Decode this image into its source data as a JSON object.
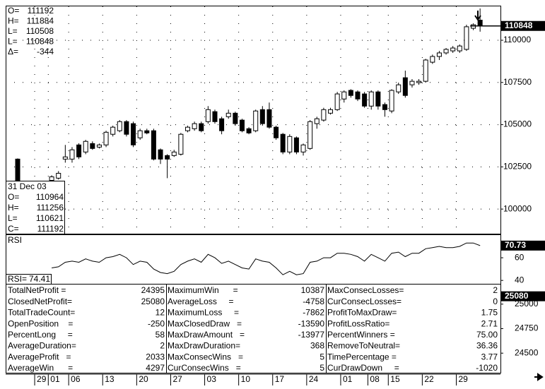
{
  "chart_data": [
    {
      "type": "candlestick",
      "categories": [
        null,
        null,
        null,
        "29",
        null,
        "01",
        null,
        null,
        "06",
        null,
        null,
        null,
        null,
        "13",
        null,
        null,
        null,
        null,
        "20",
        null,
        null,
        null,
        null,
        "27",
        null,
        null,
        null,
        null,
        "03",
        null,
        null,
        null,
        null,
        "10",
        null,
        null,
        null,
        null,
        "17",
        null,
        null,
        null,
        null,
        "24",
        null,
        null,
        null,
        null,
        "01",
        null,
        null,
        null,
        "08",
        null,
        null,
        "15",
        null,
        null,
        null,
        null,
        "22",
        null,
        null,
        null,
        null,
        "29",
        null,
        null,
        null
      ],
      "open": [
        102960,
        null,
        null,
        null,
        null,
        101700,
        101830,
        102960,
        102960,
        103800,
        103380,
        103880,
        103670,
        103800,
        104430,
        104640,
        105180,
        105060,
        104220,
        104640,
        104640,
        103510,
        103170,
        103170,
        103250,
        104640,
        104760,
        105060,
        105180,
        105770,
        105350,
        105470,
        105680,
        105270,
        104760,
        104640,
        105890,
        105890,
        104850,
        104430,
        103380,
        104220,
        103380,
        103590,
        105060,
        105270,
        105680,
        105890,
        106520,
        107030,
        106940,
        106820,
        106100,
        106940,
        106190,
        105810,
        106940,
        107780,
        107360,
        107490,
        107570,
        108700,
        109040,
        109250,
        109370,
        109370,
        109460,
        110710,
        111192
      ],
      "high": [
        103000,
        null,
        null,
        null,
        null,
        102000,
        102250,
        103800,
        103670,
        103900,
        104100,
        104010,
        103880,
        104640,
        104940,
        105270,
        105270,
        105180,
        104760,
        104760,
        104760,
        103590,
        103250,
        103510,
        104510,
        104940,
        105180,
        105180,
        106100,
        105890,
        105470,
        105890,
        105770,
        105350,
        104850,
        105890,
        106100,
        106310,
        104940,
        104510,
        104430,
        104300,
        103880,
        105270,
        105470,
        106000,
        106000,
        106940,
        107030,
        107100,
        107030,
        106940,
        107030,
        107030,
        106310,
        107100,
        107490,
        108200,
        107700,
        107700,
        108900,
        109150,
        109370,
        109540,
        109660,
        109750,
        110920,
        111000,
        111884
      ],
      "low": [
        101490,
        null,
        null,
        null,
        null,
        101600,
        101750,
        102750,
        102750,
        102960,
        103250,
        103510,
        103590,
        103670,
        104300,
        104550,
        104300,
        103670,
        104100,
        104430,
        102880,
        102670,
        101830,
        103090,
        103170,
        104550,
        104640,
        104550,
        105060,
        105060,
        104430,
        105350,
        104940,
        104550,
        104430,
        104550,
        104940,
        104760,
        104100,
        103250,
        103250,
        103250,
        103170,
        103510,
        104760,
        105180,
        105600,
        105810,
        106310,
        106600,
        106400,
        106000,
        105890,
        105890,
        105470,
        105680,
        106820,
        106600,
        107200,
        107360,
        107490,
        108600,
        108830,
        109150,
        109250,
        109250,
        109370,
        110600,
        110508
      ],
      "close": [
        101700,
        null,
        null,
        null,
        null,
        101910,
        102120,
        103090,
        103510,
        103090,
        104010,
        103590,
        103800,
        104550,
        104850,
        105180,
        104430,
        103800,
        104640,
        104510,
        102960,
        102960,
        102960,
        103380,
        104430,
        104850,
        105060,
        104640,
        105890,
        105180,
        104640,
        105680,
        105060,
        104640,
        104510,
        105810,
        105060,
        104850,
        104220,
        103380,
        104300,
        103380,
        103800,
        105180,
        105350,
        105890,
        105890,
        106820,
        106940,
        106730,
        106520,
        106100,
        106940,
        106100,
        105890,
        107030,
        107360,
        106730,
        107570,
        107570,
        108830,
        109040,
        109250,
        109460,
        109540,
        109660,
        110800,
        110920,
        110848
      ],
      "ylim": [
        98500,
        112050
      ],
      "yticks": [
        100000,
        102500,
        105000,
        107500,
        110000
      ],
      "grid": true,
      "up_color": "#ffffff",
      "down_color": "#000000",
      "info_box": [
        {
          "label": "O=",
          "value": 111192
        },
        {
          "label": "H=",
          "value": 111884
        },
        {
          "label": "L=",
          "value": 110508
        },
        {
          "label": "L=",
          "value": 110848
        },
        {
          "label": "Δ=",
          "value": -344
        }
      ],
      "cursor_box": {
        "title": "31 Dec 03",
        "rows": [
          {
            "label": "O=",
            "value": 110964
          },
          {
            "label": "H=",
            "value": 111256
          },
          {
            "label": "L=",
            "value": 110621
          },
          {
            "label": "C=",
            "value": 111192
          }
        ]
      }
    },
    {
      "type": "line",
      "title": "RSI",
      "cursor_label": {
        "label": "RSI=",
        "value": 74.41
      },
      "series": [
        {
          "name": "RSI",
          "color": "#000000",
          "values": [
            47.7,
            null,
            null,
            null,
            null,
            51,
            52,
            56,
            57,
            56,
            59,
            57,
            56,
            60,
            61,
            63,
            60,
            54,
            57,
            56,
            50,
            47,
            46,
            48,
            54,
            57,
            59,
            56,
            63,
            60,
            55,
            57,
            54,
            51,
            50,
            59,
            57,
            56,
            51,
            45,
            48,
            45,
            46,
            56,
            57,
            60,
            60,
            64,
            64,
            63,
            61,
            57,
            63,
            60,
            57,
            64,
            65,
            61,
            64,
            64,
            68,
            69,
            70,
            69,
            69,
            70,
            73,
            73,
            70.73
          ]
        }
      ],
      "ylim": [
        37,
        80
      ],
      "yticks": [
        40,
        60
      ]
    }
  ],
  "equity_axis": {
    "ylim": [
      24300,
      25200
    ],
    "yticks": [
      25000,
      24750,
      24500
    ]
  },
  "stats_table": {
    "columns": [
      [
        [
          "TotalNetProfit =",
          "24395"
        ],
        [
          "ClosedNetProfit=",
          "25080"
        ],
        [
          "TotalTradeCount=",
          "12"
        ],
        [
          "OpenPosition    =",
          "-250"
        ],
        [
          "PercentLong     =",
          "58"
        ],
        [
          "AverageDuration=",
          "2"
        ],
        [
          "AverageProfit   =",
          "2033"
        ],
        [
          "AverageWin      =",
          "4297"
        ]
      ],
      [
        [
          "MaximumWin      =",
          "10387"
        ],
        [
          "AverageLoss     =",
          "-4758"
        ],
        [
          "MaximumLoss     =",
          "-7862"
        ],
        [
          "MaxClosedDraw   =",
          "-13590"
        ],
        [
          "MaxDrawAmount   =",
          "-13977"
        ],
        [
          "MaxDrawDuration=",
          "368"
        ],
        [
          "MaxConsecWins   =",
          "5"
        ],
        [
          "CurConsecWins   =",
          "5"
        ]
      ],
      [
        [
          "MaxConsecLosses=",
          "2"
        ],
        [
          "CurConsecLosses=",
          "0"
        ],
        [
          "ProfitToMaxDraw=",
          "1.75"
        ],
        [
          "ProfitLossRatio=",
          "2.71"
        ],
        [
          "PercentWinners =",
          "75.00"
        ],
        [
          "RemoveToNeutral=",
          "36.36"
        ],
        [
          "TimePercentage =",
          "3.77"
        ],
        [
          "CurDrawDown     =",
          "-1020"
        ]
      ]
    ]
  }
}
